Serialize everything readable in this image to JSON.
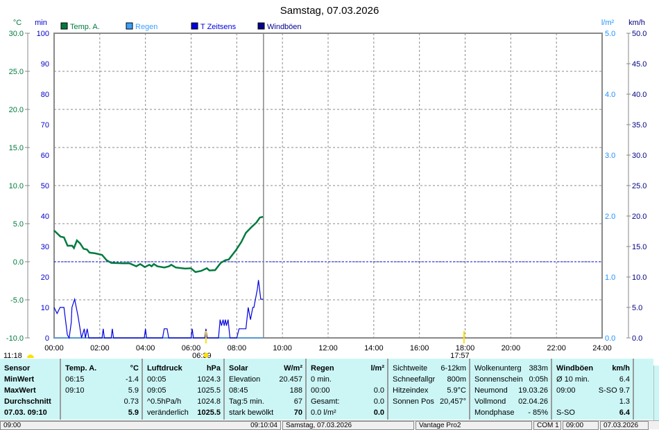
{
  "title": "Samstag, 07.03.2026",
  "legend": [
    {
      "label": "Temp. A.",
      "color": "#007a3d"
    },
    {
      "label": "Regen",
      "color": "#3aa0ff"
    },
    {
      "label": "T Zeitsens",
      "color": "#0000e0"
    },
    {
      "label": "Windböen",
      "color": "#000090"
    }
  ],
  "chart_data": {
    "type": "line",
    "axes": {
      "temp": {
        "unit": "°C",
        "range": [
          -10,
          30
        ],
        "ticks": [
          "-10.0",
          "-5.0",
          "0.0",
          "5.0",
          "10.0",
          "15.0",
          "20.0",
          "25.0",
          "30.0"
        ],
        "color": "#007a3d"
      },
      "min": {
        "unit": "min",
        "range": [
          0,
          100
        ],
        "ticks": [
          "0",
          "10",
          "20",
          "30",
          "40",
          "50",
          "60",
          "70",
          "80",
          "90",
          "100"
        ],
        "color": "#0000cc"
      },
      "rain": {
        "unit": "l/m²",
        "range": [
          0,
          5
        ],
        "ticks": [
          "0.0",
          "1.0",
          "2.0",
          "3.0",
          "4.0",
          "5.0"
        ],
        "color": "#1e90ff"
      },
      "wind": {
        "unit": "km/h",
        "range": [
          0,
          50
        ],
        "ticks": [
          "0.0",
          "5.0",
          "10.0",
          "15.0",
          "20.0",
          "25.0",
          "30.0",
          "35.0",
          "40.0",
          "45.0",
          "50.0"
        ],
        "color": "#0000a0"
      },
      "x": {
        "range": [
          0,
          24
        ],
        "ticks": [
          "00:00",
          "02:00",
          "04:00",
          "06:00",
          "08:00",
          "10:00",
          "12:00",
          "14:00",
          "16:00",
          "18:00",
          "20:00",
          "22:00",
          "24:00"
        ]
      }
    },
    "grid": true,
    "series": [
      {
        "name": "Temp. A.",
        "axis": "temp",
        "color": "#007a3d",
        "x": [
          0,
          0.28,
          0.43,
          0.59,
          0.79,
          0.87,
          1.0,
          1.14,
          1.29,
          1.44,
          1.55,
          1.8,
          2.1,
          2.3,
          2.5,
          3.02,
          3.3,
          3.6,
          3.77,
          3.97,
          4.17,
          4.27,
          4.37,
          4.52,
          4.83,
          5.03,
          5.13,
          5.33,
          5.74,
          5.99,
          6.19,
          6.44,
          6.69,
          6.8,
          7.05,
          7.3,
          7.5,
          7.65,
          7.96,
          8.2,
          8.4,
          8.66,
          8.86,
          9.01,
          9.15
        ],
        "y": [
          4.1,
          3.3,
          3.2,
          2.1,
          2.1,
          1.8,
          2.8,
          2.4,
          1.7,
          1.6,
          1.2,
          1.1,
          0.9,
          0.2,
          -0.15,
          -0.2,
          -0.2,
          -0.6,
          -0.3,
          -0.7,
          -0.4,
          -0.6,
          -0.3,
          -0.6,
          -0.75,
          -0.6,
          -0.4,
          -0.75,
          -0.9,
          -0.85,
          -1.35,
          -1.2,
          -0.85,
          -1.15,
          -1.1,
          -0.15,
          0.2,
          0.3,
          1.5,
          2.6,
          3.8,
          4.6,
          5.15,
          5.8,
          5.9
        ]
      },
      {
        "name": "Regen",
        "axis": "rain",
        "color": "#3aa0ff",
        "x": [
          0,
          9.15
        ],
        "y": [
          0,
          0
        ]
      },
      {
        "name": "T Zeitsens",
        "axis": "min",
        "color": "#0000e0",
        "x": [
          0,
          0.13,
          0.26,
          0.43,
          0.58,
          0.66,
          0.75,
          0.78,
          0.9,
          1.05,
          1.2,
          1.32,
          1.37,
          1.45,
          1.52,
          2.1,
          2.15,
          2.2,
          2.5,
          2.55,
          2.6,
          3.95,
          4.0,
          4.05,
          4.75,
          4.82,
          4.95,
          5.02,
          6.0,
          6.05,
          6.1,
          6.6,
          6.65,
          6.7,
          7.2,
          7.27,
          7.33,
          7.4,
          7.45,
          7.5,
          7.55,
          7.62,
          7.7,
          8.0,
          8.1,
          8.4,
          8.5,
          8.6,
          8.7,
          8.75,
          8.9,
          8.95,
          9.05,
          9.15
        ],
        "y": [
          10,
          8,
          10,
          10,
          1,
          0,
          5,
          10,
          12.7,
          7,
          0,
          3,
          0,
          3,
          0,
          0,
          3,
          0,
          0,
          3,
          0,
          0,
          3,
          0,
          0,
          3,
          3,
          0,
          0,
          3,
          0,
          0,
          3,
          0,
          0,
          6,
          4,
          6,
          4,
          6,
          4,
          6,
          0,
          0,
          3,
          3,
          10,
          6,
          10,
          10,
          16,
          19,
          12.7,
          12.7
        ]
      }
    ],
    "reference_line": {
      "axis": "temp",
      "value": 0
    },
    "current_time": 9.17,
    "markers": [
      {
        "label": "06:39",
        "time": 6.65
      },
      {
        "label": "17:57",
        "time": 17.95
      }
    ],
    "moon_label": "11:18"
  },
  "panel": {
    "sensor": {
      "h": "Sensor",
      "r1": "MinWert",
      "r2": "MaxWert",
      "r3": "Durchschnitt",
      "r4": "07.03. 09:10"
    },
    "temp": {
      "h": "Temp. A.",
      "u": "°C",
      "min_t": "06:15",
      "min": "-1.4",
      "max_t": "09:10",
      "max": "5.9",
      "avg": "0.73",
      "cur": "5.9"
    },
    "press": {
      "h": "Luftdruck",
      "u": "hPa",
      "min_t": "00:05",
      "min": "1024.3",
      "max_t": "09:05",
      "max": "1025.5",
      "trend": "^0.5hPa/h",
      "avg": "1024.8",
      "state": "veränderlich",
      "cur": "1025.5"
    },
    "solar": {
      "h": "Solar",
      "u": "W/m²",
      "l1": "Elevation",
      "v1": "20.457",
      "l2": "08:45",
      "v2": "188",
      "l3": "Tag:5 min.",
      "v3": "67",
      "l4": "stark bewölkt",
      "v4": "70"
    },
    "rain": {
      "h": "Regen",
      "u": "l/m²",
      "l1": "0 min.",
      "l2": "00:00",
      "v2": "0.0",
      "l3": "Gesamt:",
      "v3": "0.0",
      "l4": "0.0 l/m²",
      "v4": "0.0"
    },
    "misc": {
      "l1": "Sichtweite",
      "v1": "6-12km",
      "l2": "Schneefallgr",
      "v2": "800m",
      "l3": "Hitzeindex",
      "v3": "5.9°C",
      "l4": "Sonnen Pos",
      "v4": "20,457°"
    },
    "astro": {
      "l1": "Wolkenunterg",
      "v1": "383m",
      "l2": "Sonnenschein",
      "v2": "0:05h",
      "l3": "Neumond",
      "v3": "19.03.26",
      "l4": "Vollmond",
      "v4": "02.04.26",
      "l5": "Mondphase",
      "v5": "- 85%"
    },
    "wind": {
      "h": "Windböen",
      "u": "km/h",
      "l1": "Ø 10 min.",
      "v1": "6.4",
      "l2": "09:00",
      "v2": "S-SO 9.7",
      "v3": "1.3",
      "l4": "S-SO",
      "v4": "6.4"
    }
  },
  "status": {
    "s1a": "09:00",
    "s1b": "09:10:04",
    "s2": "Samstag, 07.03.2026",
    "s3": "Vantage Pro2",
    "s4": "COM 1",
    "s5": "09:00",
    "s6": "07.03.2026"
  }
}
